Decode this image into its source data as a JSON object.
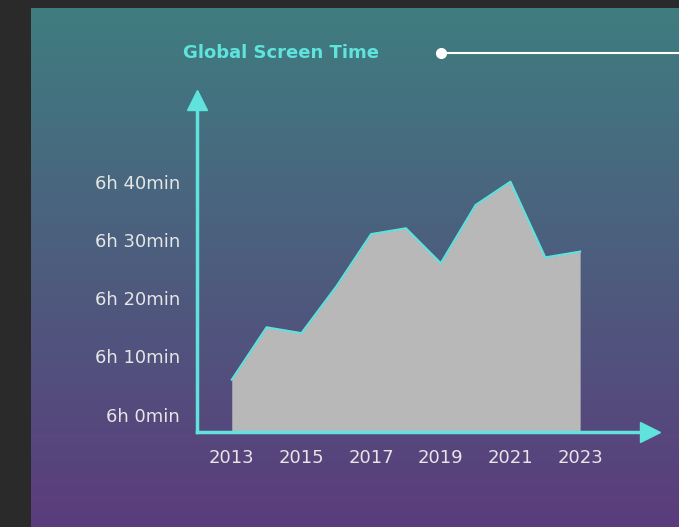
{
  "chart_data": {
    "type": "area",
    "title": "Global Screen Time",
    "x": [
      2013,
      2014,
      2015,
      2016,
      2017,
      2018,
      2019,
      2020,
      2021,
      2022,
      2023
    ],
    "values": [
      366,
      375,
      374,
      382,
      391,
      392,
      386,
      396,
      400,
      387,
      388
    ],
    "color": "#b8b8b8",
    "xlim": [
      2012,
      2025
    ],
    "xticks": [
      2013,
      2015,
      2017,
      2019,
      2021,
      2023
    ],
    "ylim": [
      357,
      414
    ],
    "yticks": [
      {
        "value": 360,
        "label": "6h 0min"
      },
      {
        "value": 370,
        "label": "6h 10min"
      },
      {
        "value": 380,
        "label": "6h 20min"
      },
      {
        "value": 390,
        "label": "6h 30min"
      },
      {
        "value": 400,
        "label": "6h 40min"
      }
    ],
    "grid": false
  }
}
